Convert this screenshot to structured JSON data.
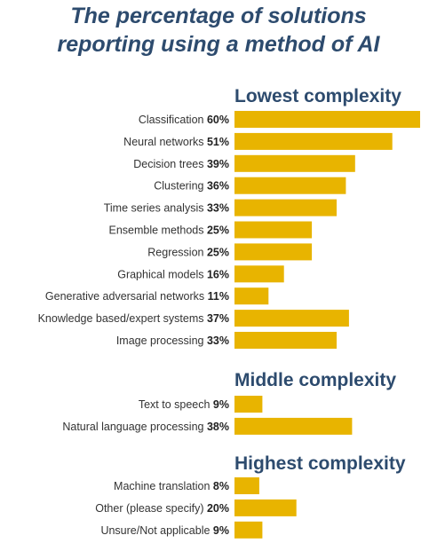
{
  "title": {
    "line1": "The percentage of solutions",
    "line2": "reporting using a method of AI"
  },
  "colors": {
    "bar": "#e8b400",
    "title": "#2d4b6e",
    "group_heading": "#2d4b6e"
  },
  "chart_data": {
    "type": "bar",
    "orientation": "horizontal",
    "title": "The percentage of solutions reporting using a method of AI",
    "xlabel": "",
    "ylabel": "",
    "unit": "%",
    "xlim": [
      0,
      60
    ],
    "grid": false,
    "groups": [
      {
        "name": "Lowest complexity",
        "categories": [
          "Classification",
          "Neural networks",
          "Decision trees",
          "Clustering",
          "Time series analysis",
          "Ensemble methods",
          "Regression",
          "Graphical models",
          "Generative adversarial networks",
          "Knowledge based/expert systems",
          "Image processing"
        ],
        "values": [
          60,
          51,
          39,
          36,
          33,
          25,
          25,
          16,
          11,
          37,
          33
        ]
      },
      {
        "name": "Middle complexity",
        "categories": [
          "Text to speech",
          "Natural language processing"
        ],
        "values": [
          9,
          38
        ]
      },
      {
        "name": "Highest complexity",
        "categories": [
          "Machine translation",
          "Other (please specify)",
          "Unsure/Not applicable"
        ],
        "values": [
          8,
          20,
          9
        ]
      }
    ]
  }
}
